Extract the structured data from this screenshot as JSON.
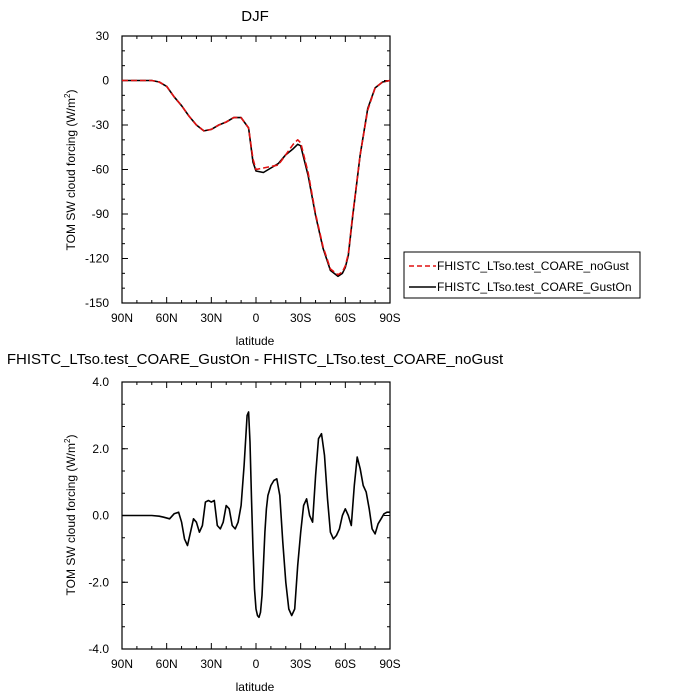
{
  "chart_data": [
    {
      "type": "line",
      "title": "DJF",
      "xlabel": "latitude",
      "ylabel": "TOM SW cloud forcing (W/m",
      "ylabel_superscript": "2",
      "ylabel_close": ")",
      "xlim": [
        90,
        -90
      ],
      "ylim": [
        -150,
        30
      ],
      "xticks": [
        90,
        60,
        30,
        0,
        -30,
        -60,
        -90
      ],
      "xtick_labels": [
        "90N",
        "60N",
        "30N",
        "0",
        "30S",
        "60S",
        "90S"
      ],
      "yticks": [
        30,
        0,
        -30,
        -60,
        -90,
        -120,
        -150
      ],
      "ytick_labels": [
        "30",
        "0",
        "-30",
        "-60",
        "-90",
        "-120",
        "-150"
      ],
      "legend": "right",
      "series": [
        {
          "name": "FHISTC_LTso.test_COARE_noGust",
          "color": "#e01010",
          "dash": "dashed",
          "x": [
            90,
            80,
            70,
            65,
            60,
            55,
            50,
            45,
            40,
            35,
            30,
            25,
            20,
            15,
            10,
            5,
            2,
            0,
            -5,
            -10,
            -15,
            -20,
            -25,
            -28,
            -30,
            -35,
            -40,
            -45,
            -50,
            -55,
            -58,
            -60,
            -62,
            -65,
            -70,
            -75,
            -80,
            -85,
            -90
          ],
          "values": [
            0,
            0,
            0,
            -1,
            -4,
            -11,
            -17,
            -24,
            -30,
            -34,
            -33,
            -30,
            -28,
            -25,
            -25,
            -32,
            -53,
            -60,
            -59,
            -58,
            -57,
            -50,
            -43,
            -40,
            -42,
            -62,
            -90,
            -112,
            -127,
            -131,
            -129,
            -125,
            -117,
            -90,
            -50,
            -20,
            -5,
            -1,
            0
          ]
        },
        {
          "name": "FHISTC_LTso.test_COARE_GustOn",
          "color": "#000000",
          "dash": "solid",
          "x": [
            90,
            80,
            70,
            65,
            60,
            55,
            50,
            45,
            40,
            35,
            30,
            25,
            20,
            15,
            10,
            5,
            2,
            0,
            -5,
            -10,
            -15,
            -20,
            -25,
            -28,
            -30,
            -35,
            -40,
            -45,
            -50,
            -55,
            -58,
            -60,
            -62,
            -65,
            -70,
            -75,
            -80,
            -85,
            -90
          ],
          "values": [
            0,
            0,
            0,
            -1,
            -4,
            -11,
            -17,
            -24,
            -30,
            -34,
            -33,
            -30,
            -28,
            -25,
            -25,
            -32,
            -55,
            -61,
            -62,
            -59,
            -56,
            -50,
            -46,
            -43,
            -44,
            -64,
            -91,
            -113,
            -128,
            -132,
            -130,
            -126,
            -118,
            -91,
            -50,
            -19,
            -5,
            -1,
            0
          ]
        }
      ]
    },
    {
      "type": "line",
      "title": "FHISTC_LTso.test_COARE_GustOn - FHISTC_LTso.test_COARE_noGust",
      "xlabel": "latitude",
      "ylabel": "TOM SW cloud forcing (W/m",
      "ylabel_superscript": "2",
      "ylabel_close": ")",
      "xlim": [
        90,
        -90
      ],
      "ylim": [
        -4,
        4
      ],
      "xticks": [
        90,
        60,
        30,
        0,
        -30,
        -60,
        -90
      ],
      "xtick_labels": [
        "90N",
        "60N",
        "30N",
        "0",
        "30S",
        "60S",
        "90S"
      ],
      "yticks": [
        4,
        2,
        0,
        -2,
        -4
      ],
      "ytick_labels": [
        "4.0",
        "2.0",
        "0.0",
        "-2.0",
        "-4.0"
      ],
      "series": [
        {
          "color": "#000000",
          "dash": "solid",
          "x": [
            90,
            70,
            65,
            62,
            58,
            55,
            52,
            50,
            48,
            46,
            44,
            42,
            40,
            38,
            36,
            34,
            32,
            30,
            28,
            26,
            24,
            22,
            20,
            18,
            16,
            14,
            12,
            10,
            8,
            6,
            5,
            4,
            3,
            2,
            1,
            0,
            -1,
            -2,
            -3,
            -4,
            -5,
            -6,
            -7,
            -8,
            -10,
            -12,
            -14,
            -16,
            -18,
            -20,
            -22,
            -24,
            -26,
            -28,
            -30,
            -32,
            -34,
            -36,
            -38,
            -40,
            -42,
            -44,
            -46,
            -48,
            -50,
            -52,
            -54,
            -56,
            -58,
            -60,
            -62,
            -64,
            -66,
            -68,
            -70,
            -72,
            -74,
            -76,
            -78,
            -80,
            -82,
            -84,
            -86,
            -88,
            -90
          ],
          "values": [
            0,
            0,
            -0.02,
            -0.05,
            -0.1,
            0.05,
            0.1,
            -0.2,
            -0.7,
            -0.9,
            -0.5,
            -0.1,
            -0.2,
            -0.5,
            -0.3,
            0.4,
            0.45,
            0.4,
            0.45,
            -0.3,
            -0.4,
            -0.2,
            0.3,
            0.2,
            -0.3,
            -0.4,
            -0.2,
            0.3,
            1.5,
            3.0,
            3.1,
            2.2,
            0.5,
            -1.0,
            -2.2,
            -2.8,
            -3.0,
            -3.05,
            -2.9,
            -2.4,
            -1.5,
            -0.5,
            0.2,
            0.6,
            0.9,
            1.05,
            1.1,
            0.6,
            -0.8,
            -2.0,
            -2.8,
            -3.0,
            -2.8,
            -1.5,
            -0.5,
            0.3,
            0.5,
            0.0,
            -0.2,
            1.2,
            2.3,
            2.45,
            1.8,
            0.5,
            -0.5,
            -0.7,
            -0.6,
            -0.4,
            0.0,
            0.2,
            0.0,
            -0.3,
            0.9,
            1.75,
            1.4,
            0.9,
            0.7,
            0.2,
            -0.4,
            -0.55,
            -0.25,
            -0.1,
            0.05,
            0.1,
            0.1
          ]
        }
      ]
    }
  ]
}
